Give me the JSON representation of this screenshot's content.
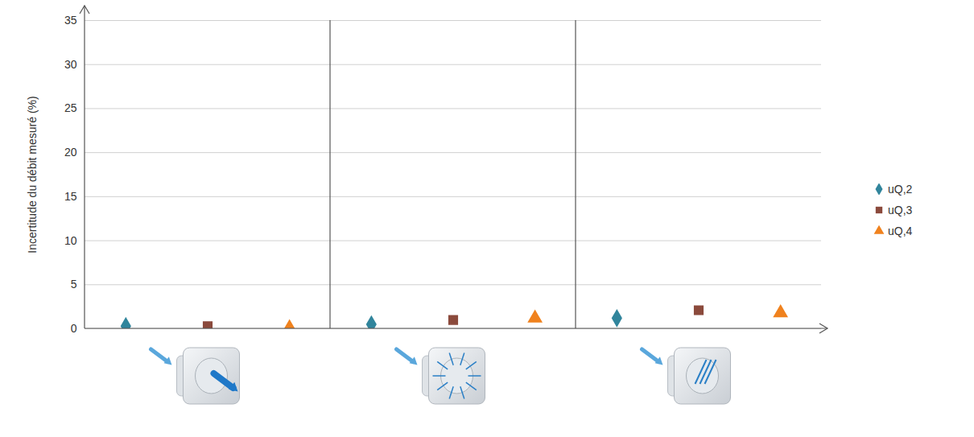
{
  "chart_data": {
    "type": "scatter",
    "y_label": "Incertitude du débit mesuré (%)",
    "categories": [
      null,
      null,
      null
    ],
    "series": [
      {
        "name": "uQ,2",
        "color": "#31859c",
        "marker": "diamond",
        "values": [
          0.3,
          0.5,
          1.2
        ]
      },
      {
        "name": "uQ,3",
        "color": "#8b4a3c",
        "marker": "square",
        "values": [
          0.3,
          1.0,
          2.1
        ]
      },
      {
        "name": "uQ,4",
        "color": "#f0821e",
        "marker": "triangle",
        "values": [
          0.1,
          1.2,
          1.8
        ]
      }
    ],
    "ylim": [
      0,
      35
    ],
    "yticks": [
      0,
      5,
      10,
      15,
      20,
      25,
      30,
      35
    ],
    "grid": true,
    "legend": "right"
  }
}
